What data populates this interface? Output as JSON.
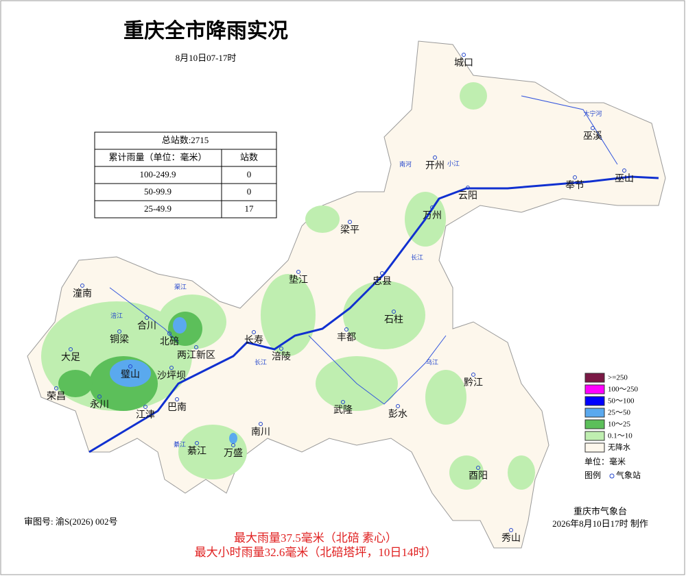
{
  "header": {
    "title": "重庆全市降雨实况",
    "subtitle": "8月10日07-17时"
  },
  "table": {
    "title": "总站数:2715",
    "columns": [
      "累计雨量（单位：毫米）",
      "站数"
    ],
    "rows": [
      [
        "100-249.9",
        0
      ],
      [
        "50-99.9",
        0
      ],
      [
        "25-49.9",
        17
      ]
    ]
  },
  "legend": {
    "items": [
      {
        "label": ">=250",
        "color": "#7a1845"
      },
      {
        "label": "100～250",
        "color": "#ff00ff"
      },
      {
        "label": "50～100",
        "color": "#0000ff"
      },
      {
        "label": "25～50",
        "color": "#5aa9ee"
      },
      {
        "label": "10～25",
        "color": "#5cbf5a"
      },
      {
        "label": "0.1～10",
        "color": "#bfeeb0"
      },
      {
        "label": "无降水",
        "color": "#fdf7ec"
      }
    ],
    "unit": "单位：毫米",
    "legend_label": "图例",
    "station_label": "气象站"
  },
  "places": [
    "城口",
    "巫溪",
    "开州",
    "巫山",
    "奉节",
    "云阳",
    "万州",
    "梁平",
    "忠县",
    "垫江",
    "潼南",
    "合川",
    "铜梁",
    "北碚",
    "大足",
    "两江新区",
    "长寿",
    "涪陵",
    "丰都",
    "石柱",
    "璧山",
    "沙坪坝",
    "荣昌",
    "永川",
    "江津",
    "巴南",
    "武隆",
    "彭水",
    "黔江",
    "南川",
    "綦江",
    "万盛",
    "酉阳",
    "秀山"
  ],
  "rivers": [
    "大宁河",
    "南河",
    "小江",
    "长江",
    "长江",
    "涪江",
    "渠江",
    "乌江",
    "綦江"
  ],
  "footer": {
    "approval": "审图号: 渝S(2026) 002号",
    "agency": "重庆市气象台",
    "made": "2026年8月10日17时 制作",
    "note1": "最大雨量37.5毫米（北碚 素心）",
    "note2": "最大小时雨量32.6毫米（北碚塔坪，10日14时）"
  }
}
